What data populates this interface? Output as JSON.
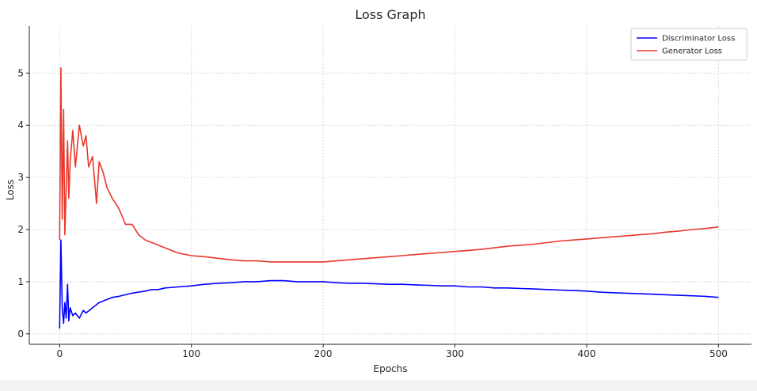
{
  "chart_data": {
    "type": "line",
    "title": "Loss Graph",
    "xlabel": "Epochs",
    "ylabel": "Loss",
    "xlim": [
      -23,
      525
    ],
    "ylim": [
      -0.2,
      5.9
    ],
    "xticks": [
      0,
      100,
      200,
      300,
      400,
      500
    ],
    "yticks": [
      0,
      1,
      2,
      3,
      4,
      5
    ],
    "grid": true,
    "legend_position": "top-right",
    "series": [
      {
        "name": "Discriminator Loss",
        "color": "#0000ff",
        "x": [
          0,
          1,
          2,
          3,
          4,
          5,
          6,
          7,
          8,
          10,
          12,
          15,
          18,
          20,
          25,
          30,
          35,
          40,
          45,
          50,
          55,
          60,
          65,
          70,
          75,
          80,
          90,
          100,
          110,
          120,
          130,
          140,
          150,
          160,
          170,
          180,
          190,
          200,
          210,
          220,
          230,
          240,
          250,
          260,
          270,
          280,
          290,
          300,
          310,
          320,
          330,
          340,
          350,
          360,
          370,
          380,
          390,
          400,
          410,
          420,
          430,
          440,
          450,
          460,
          470,
          480,
          490,
          500
        ],
        "values": [
          0.1,
          1.8,
          0.5,
          0.2,
          0.6,
          0.3,
          0.95,
          0.25,
          0.5,
          0.35,
          0.4,
          0.3,
          0.45,
          0.4,
          0.5,
          0.6,
          0.65,
          0.7,
          0.72,
          0.75,
          0.78,
          0.8,
          0.82,
          0.85,
          0.85,
          0.88,
          0.9,
          0.92,
          0.95,
          0.97,
          0.98,
          1.0,
          1.0,
          1.02,
          1.02,
          1.0,
          1.0,
          1.0,
          0.98,
          0.97,
          0.97,
          0.96,
          0.95,
          0.95,
          0.94,
          0.93,
          0.92,
          0.92,
          0.9,
          0.9,
          0.88,
          0.88,
          0.87,
          0.86,
          0.85,
          0.84,
          0.83,
          0.82,
          0.8,
          0.79,
          0.78,
          0.77,
          0.76,
          0.75,
          0.74,
          0.73,
          0.72,
          0.7
        ]
      },
      {
        "name": "Generator Loss",
        "color": "#e8372b",
        "x": [
          0,
          1,
          2,
          3,
          4,
          5,
          6,
          7,
          8,
          10,
          12,
          15,
          18,
          20,
          22,
          25,
          28,
          30,
          33,
          36,
          40,
          45,
          50,
          55,
          60,
          65,
          70,
          75,
          80,
          90,
          100,
          110,
          120,
          130,
          140,
          150,
          160,
          170,
          180,
          190,
          200,
          210,
          220,
          230,
          240,
          250,
          260,
          270,
          280,
          290,
          300,
          310,
          320,
          330,
          340,
          350,
          360,
          370,
          380,
          390,
          400,
          410,
          420,
          430,
          440,
          450,
          460,
          470,
          480,
          490,
          500
        ],
        "values": [
          1.8,
          5.1,
          2.2,
          4.3,
          1.9,
          2.8,
          3.7,
          2.6,
          3.3,
          3.9,
          3.2,
          4.0,
          3.6,
          3.8,
          3.2,
          3.4,
          2.5,
          3.3,
          3.1,
          2.8,
          2.6,
          2.4,
          2.1,
          2.1,
          1.9,
          1.8,
          1.75,
          1.7,
          1.65,
          1.55,
          1.5,
          1.48,
          1.45,
          1.42,
          1.4,
          1.4,
          1.38,
          1.38,
          1.38,
          1.38,
          1.38,
          1.4,
          1.42,
          1.44,
          1.46,
          1.48,
          1.5,
          1.52,
          1.54,
          1.56,
          1.58,
          1.6,
          1.62,
          1.65,
          1.68,
          1.7,
          1.72,
          1.75,
          1.78,
          1.8,
          1.82,
          1.84,
          1.86,
          1.88,
          1.9,
          1.92,
          1.95,
          1.97,
          2.0,
          2.02,
          2.05
        ]
      }
    ]
  }
}
